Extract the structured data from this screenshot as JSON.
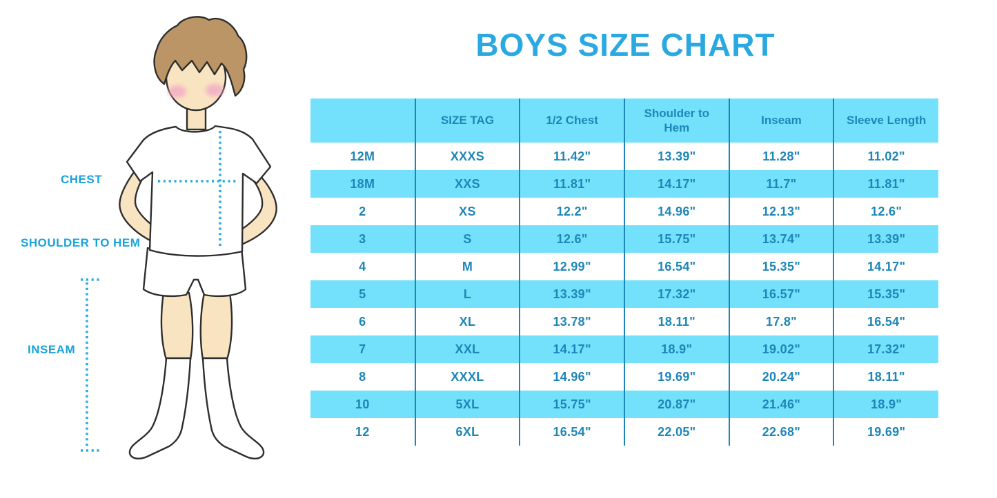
{
  "title": "BOYS SIZE CHART",
  "figure_labels": {
    "chest": "CHEST",
    "shoulder_to_hem": "SHOULDER TO HEM",
    "inseam": "INSEAM"
  },
  "chart_data": {
    "type": "table",
    "title": "BOYS SIZE CHART",
    "columns": [
      "",
      "SIZE TAG",
      "1/2 Chest",
      "Shoulder to Hem",
      "Inseam",
      "Sleeve Length"
    ],
    "rows": [
      [
        "12M",
        "XXXS",
        "11.42\"",
        "13.39\"",
        "11.28\"",
        "11.02\""
      ],
      [
        "18M",
        "XXS",
        "11.81\"",
        "14.17\"",
        "11.7\"",
        "11.81\""
      ],
      [
        "2",
        "XS",
        "12.2\"",
        "14.96\"",
        "12.13\"",
        "12.6\""
      ],
      [
        "3",
        "S",
        "12.6\"",
        "15.75\"",
        "13.74\"",
        "13.39\""
      ],
      [
        "4",
        "M",
        "12.99\"",
        "16.54\"",
        "15.35\"",
        "14.17\""
      ],
      [
        "5",
        "L",
        "13.39\"",
        "17.32\"",
        "16.57\"",
        "15.35\""
      ],
      [
        "6",
        "XL",
        "13.78\"",
        "18.11\"",
        "17.8\"",
        "16.54\""
      ],
      [
        "7",
        "XXL",
        "14.17\"",
        "18.9\"",
        "19.02\"",
        "17.32\""
      ],
      [
        "8",
        "XXXL",
        "14.96\"",
        "19.69\"",
        "20.24\"",
        "18.11\""
      ],
      [
        "10",
        "5XL",
        "15.75\"",
        "20.87\"",
        "21.46\"",
        "18.9\""
      ],
      [
        "12",
        "6XL",
        "16.54\"",
        "22.05\"",
        "22.68\"",
        "19.69\""
      ]
    ],
    "row_striping": "white and light blue alternating, header light blue",
    "legend_position": "none",
    "grid": "vertical column dividers only"
  },
  "colors": {
    "band": "#73E1FB",
    "tableText": "#1D86B8",
    "divider": "#1D86B8",
    "title": "#2AA9E0",
    "label": "#18A2DC",
    "dotted": "#2BACE2",
    "skin": "#F9E4C1",
    "hair": "#BB9566",
    "cheek": "#F2A8C5",
    "outline": "#2E2E2E"
  }
}
